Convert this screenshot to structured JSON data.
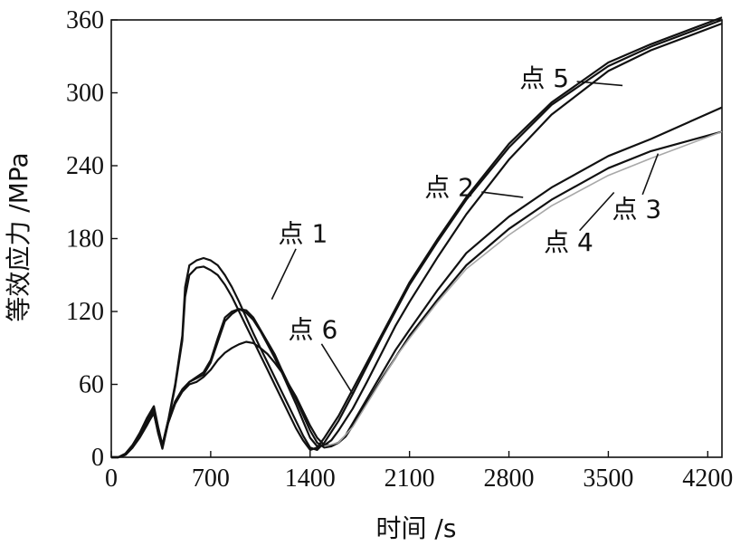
{
  "chart_data": {
    "type": "line",
    "xlabel": "时间 /s",
    "ylabel": "等效应力 /MPa",
    "xlim": [
      0,
      4300
    ],
    "ylim": [
      0,
      360
    ],
    "xticks": [
      "0",
      "700",
      "1400",
      "2100",
      "2800",
      "3500",
      "4200"
    ],
    "yticks": [
      "0",
      "60",
      "120",
      "180",
      "240",
      "300",
      "360"
    ],
    "grid": false,
    "series": [
      {
        "name": "点 1",
        "color": "#111111",
        "x": [
          0,
          50,
          100,
          150,
          200,
          250,
          300,
          330,
          360,
          400,
          450,
          500,
          550,
          600,
          650,
          700,
          750,
          800,
          850,
          900,
          950,
          1000,
          1050,
          1100,
          1150,
          1200,
          1250,
          1300,
          1350,
          1400,
          1450,
          1500,
          1550,
          1600,
          1650,
          1700,
          1800,
          1900,
          2000,
          2100,
          2300,
          2500,
          2800,
          3100,
          3500,
          3800,
          4300
        ],
        "y": [
          0,
          0,
          2,
          8,
          16,
          26,
          37,
          20,
          8,
          28,
          45,
          55,
          62,
          65,
          68,
          78,
          95,
          112,
          118,
          122,
          121,
          115,
          105,
          95,
          85,
          72,
          60,
          48,
          35,
          22,
          12,
          8,
          9,
          12,
          18,
          28,
          48,
          68,
          88,
          105,
          138,
          168,
          198,
          222,
          248,
          262,
          288
        ]
      },
      {
        "name": "点 2",
        "color": "#111111",
        "x": [
          0,
          50,
          100,
          150,
          200,
          250,
          300,
          330,
          360,
          400,
          450,
          500,
          550,
          600,
          650,
          700,
          750,
          800,
          850,
          900,
          950,
          1000,
          1050,
          1100,
          1150,
          1200,
          1250,
          1300,
          1350,
          1400,
          1450,
          1500,
          1550,
          1600,
          1700,
          1800,
          1900,
          2000,
          2100,
          2300,
          2500,
          2800,
          3100,
          3500,
          3800,
          4300
        ],
        "y": [
          0,
          0,
          2,
          9,
          18,
          28,
          38,
          22,
          10,
          30,
          46,
          56,
          62,
          66,
          70,
          80,
          98,
          115,
          120,
          122,
          119,
          113,
          104,
          93,
          82,
          70,
          57,
          44,
          30,
          16,
          9,
          10,
          14,
          22,
          40,
          62,
          85,
          108,
          128,
          165,
          200,
          245,
          282,
          318,
          335,
          357
        ]
      },
      {
        "name": "点 3",
        "color": "#111111",
        "x": [
          0,
          50,
          100,
          150,
          200,
          250,
          300,
          330,
          360,
          400,
          450,
          500,
          550,
          600,
          650,
          700,
          750,
          800,
          850,
          900,
          950,
          1000,
          1050,
          1100,
          1150,
          1200,
          1250,
          1300,
          1350,
          1400,
          1450,
          1500,
          1550,
          1600,
          1650,
          1700,
          1800,
          1900,
          2000,
          2100,
          2300,
          2500,
          2800,
          3100,
          3500,
          3800,
          4300
        ],
        "y": [
          0,
          0,
          2,
          8,
          17,
          27,
          36,
          20,
          7,
          28,
          44,
          54,
          60,
          62,
          66,
          72,
          80,
          86,
          90,
          93,
          95,
          94,
          90,
          85,
          78,
          70,
          60,
          50,
          38,
          26,
          16,
          10,
          10,
          12,
          17,
          26,
          45,
          64,
          82,
          100,
          130,
          158,
          188,
          212,
          238,
          252,
          268
        ]
      },
      {
        "name": "点 4",
        "color": "#a8a8a8",
        "light": true,
        "x": [
          1500,
          1600,
          1700,
          1800,
          1900,
          2000,
          2100,
          2300,
          2500,
          2800,
          3100,
          3500,
          3800,
          4300
        ],
        "y": [
          9,
          12,
          25,
          44,
          63,
          82,
          98,
          128,
          155,
          183,
          207,
          232,
          246,
          268
        ]
      },
      {
        "name": "点 5",
        "color": "#111111",
        "x": [
          0,
          50,
          100,
          150,
          200,
          250,
          300,
          330,
          360,
          400,
          450,
          500,
          520,
          550,
          600,
          650,
          700,
          750,
          800,
          850,
          900,
          950,
          1000,
          1050,
          1100,
          1150,
          1200,
          1250,
          1300,
          1350,
          1400,
          1450,
          1500,
          1600,
          1700,
          1800,
          1900,
          2000,
          2100,
          2300,
          2500,
          2800,
          3100,
          3500,
          3800,
          4300
        ],
        "y": [
          0,
          0,
          3,
          10,
          20,
          32,
          42,
          25,
          10,
          30,
          60,
          100,
          140,
          158,
          162,
          164,
          162,
          158,
          150,
          140,
          128,
          115,
          102,
          90,
          78,
          66,
          54,
          42,
          30,
          18,
          8,
          6,
          12,
          30,
          52,
          75,
          98,
          120,
          142,
          178,
          212,
          255,
          290,
          322,
          338,
          360
        ]
      },
      {
        "name": "点 6",
        "color": "#111111",
        "x": [
          0,
          50,
          100,
          150,
          200,
          250,
          300,
          330,
          360,
          400,
          450,
          500,
          520,
          550,
          600,
          650,
          700,
          750,
          800,
          850,
          900,
          950,
          1000,
          1050,
          1100,
          1150,
          1200,
          1250,
          1300,
          1350,
          1400,
          1450,
          1500,
          1600,
          1700,
          1800,
          1900,
          2000,
          2100,
          2300,
          2500,
          2800,
          3100,
          3500,
          3800,
          4300
        ],
        "y": [
          0,
          0,
          3,
          10,
          19,
          30,
          40,
          24,
          9,
          29,
          58,
          96,
          132,
          150,
          156,
          157,
          154,
          150,
          142,
          132,
          120,
          108,
          96,
          84,
          72,
          60,
          48,
          36,
          24,
          14,
          6,
          8,
          16,
          34,
          56,
          78,
          100,
          122,
          144,
          180,
          214,
          258,
          292,
          325,
          340,
          362
        ]
      }
    ],
    "annotations": [
      {
        "text": "点 5",
        "x": 3050,
        "y": 305,
        "tx": 3600,
        "ty": 306
      },
      {
        "text": "点 2",
        "x": 2380,
        "y": 215,
        "tx": 2900,
        "ty": 214
      },
      {
        "text": "点 1",
        "x": 1350,
        "y": 177,
        "tx": 1130,
        "ty": 130
      },
      {
        "text": "点 6",
        "x": 1420,
        "y": 98,
        "tx": 1700,
        "ty": 52
      },
      {
        "text": "点 3",
        "x": 3700,
        "y": 197,
        "tx": 3850,
        "ty": 250
      },
      {
        "text": "点 4",
        "x": 3220,
        "y": 170,
        "tx": 3540,
        "ty": 218
      }
    ]
  }
}
